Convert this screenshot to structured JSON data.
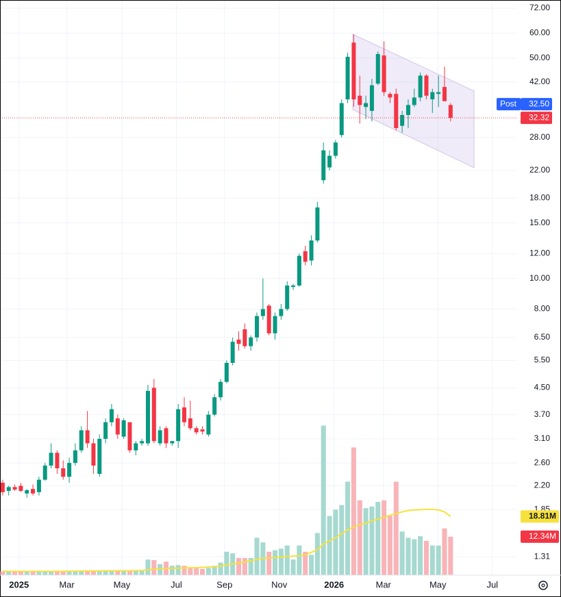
{
  "chart_data": {
    "type": "candlestick",
    "log_scale": true,
    "grid": true,
    "up_color": "#089981",
    "down_color": "#f23645",
    "open": [
      2.25,
      2.12,
      2.18,
      2.2,
      2.08,
      2.15,
      2.1,
      2.3,
      2.55,
      2.8,
      2.5,
      2.35,
      2.6,
      2.85,
      3.3,
      3.0,
      2.4,
      3.1,
      3.5,
      3.6,
      3.15,
      3.5,
      2.85,
      3.0,
      3.0,
      4.5,
      3.0,
      3.35,
      3.0,
      3.05,
      3.9,
      3.6,
      3.35,
      3.32,
      3.2,
      3.7,
      4.2,
      4.7,
      5.4,
      6.4,
      6.9,
      6.1,
      6.5,
      7.6,
      8.2,
      6.7,
      7.6,
      8.0,
      9.4,
      9.5,
      12.2,
      11.4,
      13.2,
      20.5,
      22.5,
      24.5,
      28.5,
      37.0,
      56.0,
      38.0,
      35.0,
      34.0,
      41.5,
      51.0,
      38.5,
      38.5,
      30.5,
      33.0,
      35.5,
      37.5,
      44.0,
      37.0,
      38.5,
      40.5,
      35.5
    ],
    "high": [
      2.3,
      2.2,
      2.22,
      2.25,
      2.15,
      2.22,
      2.35,
      2.6,
      3.0,
      2.85,
      2.65,
      2.7,
      3.0,
      3.4,
      3.8,
      3.1,
      3.2,
      3.6,
      4.0,
      3.7,
      3.6,
      3.5,
      3.05,
      3.1,
      4.6,
      4.8,
      3.4,
      3.4,
      3.05,
      4.0,
      4.2,
      4.1,
      3.4,
      3.4,
      3.8,
      4.3,
      4.8,
      5.5,
      6.5,
      6.8,
      7.2,
      6.6,
      7.8,
      10.0,
      8.3,
      7.8,
      8.3,
      9.8,
      9.6,
      12.0,
      12.7,
      13.7,
      17.5,
      27.0,
      25.5,
      27.5,
      37.0,
      52.0,
      59.5,
      44.0,
      38.0,
      43.0,
      52.5,
      56.5,
      39.0,
      40.0,
      34.0,
      37.0,
      40.0,
      45.0,
      44.5,
      40.0,
      44.0,
      47.0,
      36.0
    ],
    "low": [
      2.05,
      2.05,
      2.12,
      2.1,
      2.02,
      2.05,
      2.05,
      2.28,
      2.5,
      2.4,
      2.3,
      2.25,
      2.55,
      2.8,
      2.9,
      2.4,
      2.35,
      3.0,
      3.4,
      3.1,
      3.1,
      2.8,
      2.75,
      2.95,
      2.95,
      3.0,
      2.95,
      2.9,
      2.95,
      2.9,
      3.4,
      3.3,
      3.2,
      3.2,
      3.15,
      3.65,
      4.1,
      4.65,
      5.3,
      5.9,
      6.0,
      5.9,
      6.3,
      7.4,
      6.6,
      6.4,
      7.4,
      7.9,
      9.2,
      9.4,
      11.0,
      11.0,
      13.0,
      20.0,
      22.0,
      24.0,
      28.0,
      36.0,
      35.0,
      31.0,
      32.0,
      31.5,
      41.0,
      38.0,
      36.0,
      29.5,
      29.0,
      30.0,
      35.0,
      36.5,
      37.0,
      33.5,
      35.0,
      37.0,
      31.5
    ],
    "close": [
      2.1,
      2.18,
      2.14,
      2.12,
      2.13,
      2.08,
      2.3,
      2.55,
      2.8,
      2.5,
      2.35,
      2.6,
      2.85,
      3.3,
      3.0,
      2.55,
      3.1,
      3.5,
      3.85,
      3.2,
      3.55,
      2.85,
      3.0,
      3.05,
      4.4,
      3.05,
      3.3,
      3.0,
      3.05,
      3.85,
      3.5,
      3.35,
      3.25,
      3.27,
      3.7,
      4.2,
      4.7,
      5.4,
      6.3,
      6.2,
      6.1,
      6.5,
      7.6,
      8.0,
      6.7,
      7.6,
      8.0,
      9.5,
      9.5,
      11.8,
      11.3,
      13.2,
      16.8,
      25.5,
      24.5,
      27.0,
      36.0,
      50.5,
      37.0,
      35.5,
      36.0,
      41.0,
      51.5,
      39.0,
      37.5,
      30.0,
      33.0,
      35.5,
      37.5,
      44.0,
      38.0,
      39.0,
      39.0,
      36.5,
      32.32
    ],
    "volume": {
      "axis": "y2",
      "up_color": "#a6d9d0",
      "down_color": "#f8b4b8",
      "last_label_color": "#f23645",
      "values": [
        1.2,
        1.2,
        1.2,
        1.2,
        1.2,
        1.2,
        1.2,
        1.2,
        1.2,
        1.2,
        1.2,
        1.2,
        1.2,
        1.5,
        1.5,
        1.5,
        1.5,
        1.5,
        1.5,
        1.3,
        1.3,
        1.3,
        1.5,
        1.5,
        5.0,
        4.8,
        3.5,
        4.3,
        3.0,
        3.2,
        3.0,
        2.5,
        2.2,
        2.0,
        2.3,
        3.0,
        4.0,
        7.5,
        7.0,
        5.5,
        5.5,
        5.5,
        12.0,
        10.5,
        7.5,
        8.0,
        8.5,
        9.5,
        5.0,
        9.5,
        7.5,
        6.5,
        13.5,
        48.0,
        19.0,
        21.0,
        22.5,
        30.0,
        41.0,
        24.0,
        21.5,
        22.0,
        23.5,
        24.0,
        19.0,
        30.0,
        14.0,
        12.0,
        11.5,
        12.5,
        11.0,
        9.5,
        9.5,
        15.0,
        12.34
      ],
      "last_label": "12.34M"
    },
    "volume_ma": {
      "axis": "y2",
      "color": "#f7e13b",
      "values": [
        1.2,
        1.2,
        1.2,
        1.2,
        1.2,
        1.2,
        1.2,
        1.2,
        1.2,
        1.2,
        1.2,
        1.25,
        1.25,
        1.3,
        1.3,
        1.35,
        1.35,
        1.4,
        1.4,
        1.4,
        1.4,
        1.4,
        1.45,
        1.5,
        1.7,
        1.9,
        2.0,
        2.1,
        2.2,
        2.2,
        2.3,
        2.4,
        2.4,
        2.5,
        2.6,
        2.7,
        2.9,
        3.3,
        3.6,
        3.9,
        4.2,
        4.6,
        5.0,
        5.4,
        5.5,
        5.6,
        5.8,
        6.0,
        6.1,
        6.2,
        6.5,
        7.3,
        8.2,
        10.0,
        11.0,
        12.0,
        13.3,
        14.5,
        15.5,
        16.2,
        16.7,
        17.4,
        18.0,
        18.6,
        19.2,
        19.8,
        20.3,
        20.7,
        20.9,
        21.0,
        21.1,
        21.1,
        20.9,
        20.3,
        18.81
      ],
      "last_label": "18.81M"
    },
    "post": {
      "name": "Post",
      "value": 32.5,
      "value_label": "32.50",
      "color": "#2962ff"
    },
    "ylim": [
      1.146,
      75.3
    ],
    "y2lim": [
      0,
      184
    ],
    "xlim": [
      -0.1,
      85
    ],
    "yticks": [
      {
        "value": 72,
        "label": "72.00"
      },
      {
        "value": 60,
        "label": "60.00"
      },
      {
        "value": 50,
        "label": "50.00"
      },
      {
        "value": 42,
        "label": "42.00"
      },
      {
        "value": 28,
        "label": "28.00"
      },
      {
        "value": 22,
        "label": "22.00"
      },
      {
        "value": 18,
        "label": "18.00"
      },
      {
        "value": 15,
        "label": "15.00"
      },
      {
        "value": 12,
        "label": "12.00"
      },
      {
        "value": 10,
        "label": "10.00"
      },
      {
        "value": 8,
        "label": "8.00"
      },
      {
        "value": 6.5,
        "label": "6.50"
      },
      {
        "value": 5.5,
        "label": "5.50"
      },
      {
        "value": 4.5,
        "label": "4.50"
      },
      {
        "value": 3.7,
        "label": "3.70"
      },
      {
        "value": 3.1,
        "label": "3.10"
      },
      {
        "value": 2.6,
        "label": "2.60"
      },
      {
        "value": 2.2,
        "label": "2.20"
      },
      {
        "value": 1.85,
        "label": "1.85"
      },
      {
        "value": 1.31,
        "label": "1.31"
      }
    ],
    "xticks": [
      {
        "value": 2.7,
        "label": "2025"
      },
      {
        "value": 10.6,
        "label": "Mar"
      },
      {
        "value": 19.7,
        "label": "May"
      },
      {
        "value": 28.7,
        "label": "Jul"
      },
      {
        "value": 36.65,
        "label": "Sep"
      },
      {
        "value": 45.7,
        "label": "Nov"
      },
      {
        "value": 54.75,
        "label": "2026"
      },
      {
        "value": 62.9,
        "label": "Mar"
      },
      {
        "value": 71.9,
        "label": "May"
      },
      {
        "value": 80.9,
        "label": "Jul"
      }
    ]
  }
}
